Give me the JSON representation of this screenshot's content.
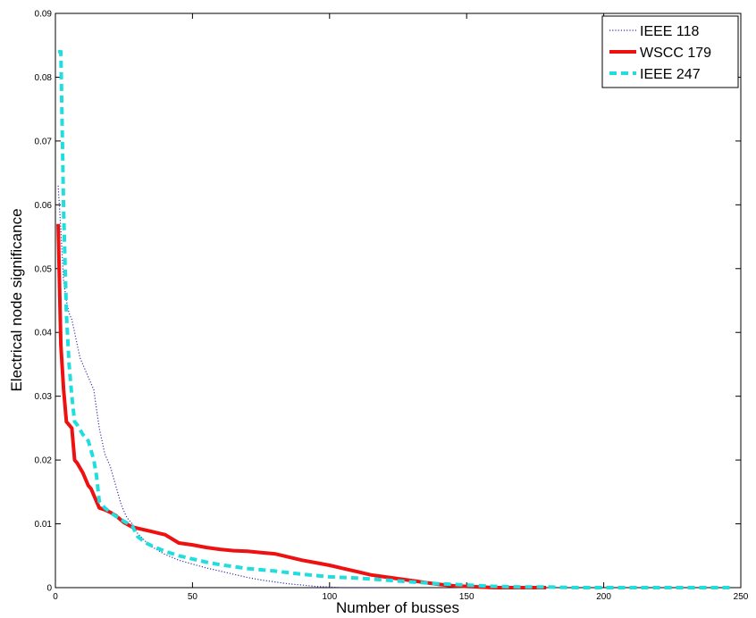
{
  "chart_data": {
    "type": "line",
    "title": "",
    "xlabel": "Number of busses",
    "ylabel": "Electrical node significance",
    "xlim": [
      0,
      250
    ],
    "ylim": [
      0,
      0.09
    ],
    "xticks": [
      0,
      50,
      100,
      150,
      200,
      250
    ],
    "yticks": [
      0,
      0.01,
      0.02,
      0.03,
      0.04,
      0.05,
      0.06,
      0.07,
      0.08,
      0.09
    ],
    "grid": false,
    "legend_position": "top-right",
    "series": [
      {
        "name": "IEEE 118",
        "color": "#3333aa",
        "style": "dotted",
        "x": [
          1,
          2,
          3,
          4,
          5,
          6,
          7,
          8,
          9,
          10,
          11,
          12,
          13,
          14,
          15,
          16,
          17,
          18,
          19,
          20,
          22,
          24,
          26,
          28,
          30,
          33,
          36,
          40,
          45,
          50,
          55,
          60,
          65,
          70,
          75,
          80,
          85,
          90,
          95,
          100,
          105,
          110,
          118
        ],
        "y": [
          0.063,
          0.056,
          0.048,
          0.045,
          0.043,
          0.042,
          0.04,
          0.038,
          0.036,
          0.035,
          0.034,
          0.033,
          0.032,
          0.031,
          0.028,
          0.025,
          0.023,
          0.021,
          0.02,
          0.019,
          0.016,
          0.013,
          0.011,
          0.01,
          0.0085,
          0.0072,
          0.0062,
          0.0052,
          0.0043,
          0.0037,
          0.0031,
          0.0026,
          0.0021,
          0.0016,
          0.0012,
          0.0009,
          0.0006,
          0.0004,
          0.0002,
          0.0001,
          0.0,
          0.0,
          0.0
        ]
      },
      {
        "name": "WSCC 179",
        "color": "#ee1111",
        "style": "solid",
        "x": [
          1,
          2,
          3,
          4,
          6,
          7,
          8,
          10,
          12,
          13,
          15,
          16,
          18,
          20,
          22,
          25,
          28,
          30,
          35,
          38,
          40,
          45,
          50,
          55,
          60,
          65,
          70,
          75,
          80,
          85,
          90,
          95,
          100,
          105,
          110,
          115,
          120,
          125,
          130,
          135,
          140,
          145,
          150,
          155,
          160,
          165,
          170,
          179
        ],
        "y": [
          0.057,
          0.038,
          0.031,
          0.026,
          0.025,
          0.02,
          0.0195,
          0.018,
          0.016,
          0.0155,
          0.0135,
          0.0125,
          0.0122,
          0.0118,
          0.0113,
          0.0102,
          0.0095,
          0.0093,
          0.0088,
          0.0085,
          0.0083,
          0.007,
          0.0067,
          0.0063,
          0.006,
          0.0058,
          0.0057,
          0.0055,
          0.0053,
          0.0048,
          0.0043,
          0.0039,
          0.0035,
          0.003,
          0.0025,
          0.002,
          0.0017,
          0.0014,
          0.0011,
          0.0008,
          0.0005,
          0.0003,
          0.0002,
          0.0001,
          0.0,
          0.0,
          0.0,
          0.0
        ]
      },
      {
        "name": "IEEE 247",
        "color": "#22dddd",
        "style": "dashed",
        "x": [
          1,
          2,
          3,
          4,
          5,
          6,
          7,
          8,
          10,
          12,
          14,
          15,
          16,
          18,
          20,
          22,
          25,
          28,
          30,
          33,
          36,
          40,
          45,
          50,
          55,
          60,
          70,
          80,
          90,
          100,
          110,
          120,
          130,
          140,
          150,
          160,
          170,
          180,
          190,
          200,
          210,
          220,
          230,
          240,
          247
        ],
        "y": [
          0.084,
          0.084,
          0.059,
          0.043,
          0.035,
          0.03,
          0.026,
          0.0255,
          0.024,
          0.023,
          0.02,
          0.0175,
          0.0135,
          0.0125,
          0.0118,
          0.0112,
          0.0104,
          0.0097,
          0.008,
          0.007,
          0.0064,
          0.0057,
          0.005,
          0.0045,
          0.004,
          0.0036,
          0.003,
          0.0026,
          0.0021,
          0.0017,
          0.0015,
          0.0012,
          0.0009,
          0.0006,
          0.0004,
          0.0002,
          0.0001,
          0.0001,
          0.0,
          0.0,
          0.0,
          0.0,
          0.0,
          0.0,
          0.0
        ]
      }
    ]
  }
}
